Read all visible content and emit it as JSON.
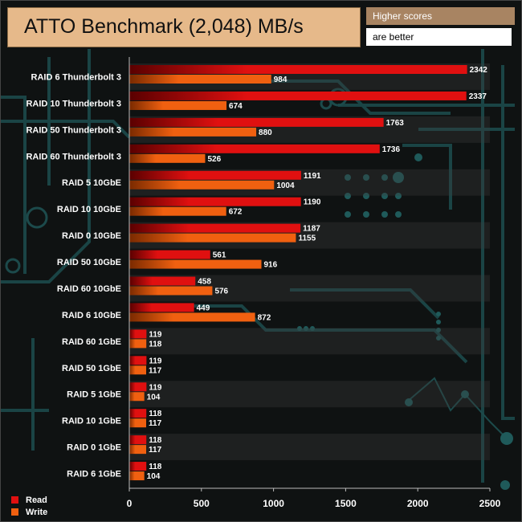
{
  "header": {
    "title": "ATTO Benchmark (2,048) MB/s",
    "note_line1": "Higher scores",
    "note_line2": "are better"
  },
  "colors": {
    "read": "#e01010",
    "write": "#f06010",
    "background": "#0f1212",
    "circuit": "#1f4f50"
  },
  "chart_data": {
    "type": "bar",
    "orientation": "horizontal",
    "title": "ATTO Benchmark (2,048) MB/s",
    "xlabel": "",
    "ylabel": "",
    "xlim": [
      0,
      2500
    ],
    "xticks": [
      0,
      500,
      1000,
      1500,
      2000,
      2500
    ],
    "grid": false,
    "legend_position": "bottom-left",
    "categories": [
      "RAID 6 Thunderbolt 3",
      "RAID 10 Thunderbolt 3",
      "RAID 50 Thunderbolt 3",
      "RAID 60 Thunderbolt 3",
      "RAID 5 10GbE",
      "RAID 10 10GbE",
      "RAID 0 10GbE",
      "RAID 50 10GbE",
      "RAID 60 10GbE",
      "RAID 6 10GbE",
      "RAID 60 1GbE",
      "RAID 50 1GbE",
      "RAID 5 1GbE",
      "RAID 10 1GbE",
      "RAID 0 1GbE",
      "RAID 6 1GbE"
    ],
    "series": [
      {
        "name": "Read",
        "values": [
          2342,
          2337,
          1763,
          1736,
          1191,
          1190,
          1187,
          561,
          458,
          449,
          119,
          119,
          119,
          118,
          118,
          118
        ]
      },
      {
        "name": "Write",
        "values": [
          984,
          674,
          880,
          526,
          1004,
          672,
          1155,
          916,
          576,
          872,
          118,
          117,
          104,
          117,
          117,
          104
        ]
      }
    ]
  }
}
